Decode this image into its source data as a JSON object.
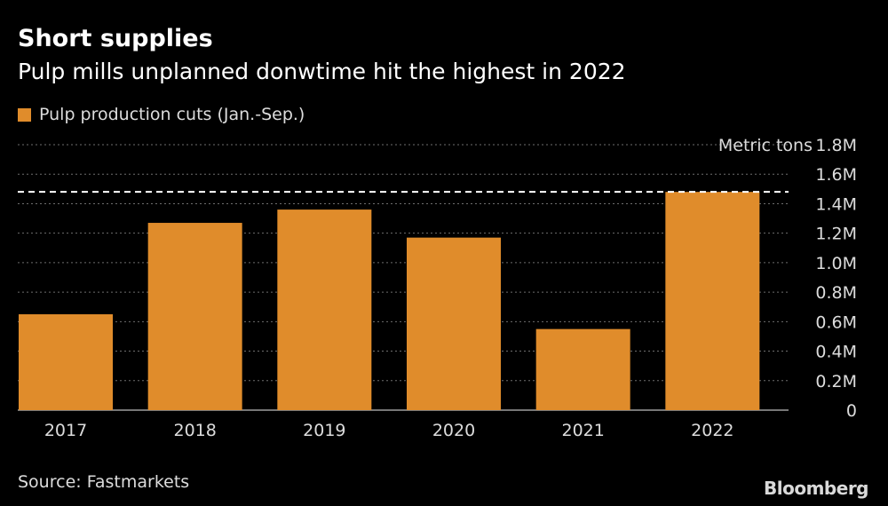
{
  "header": {
    "title": "Short supplies",
    "subtitle": "Pulp mills unplanned donwtime hit the highest in 2022"
  },
  "legend": {
    "label": "Pulp production cuts (Jan.-Sep.)"
  },
  "footer": {
    "source": "Source: Fastmarkets",
    "brand": "Bloomberg"
  },
  "colors": {
    "background": "#000000",
    "bar": "#E08C2B",
    "grid": "#6e6e6e",
    "reference_line": "#ffffff",
    "text": "#ffffff",
    "muted_text": "#dcdcdc"
  },
  "chart_data": {
    "type": "bar",
    "title": "Short supplies",
    "subtitle": "Pulp mills unplanned donwtime hit the highest in 2022",
    "categories": [
      "2017",
      "2018",
      "2019",
      "2020",
      "2021",
      "2022"
    ],
    "series": [
      {
        "name": "Pulp production cuts (Jan.-Sep.)",
        "values": [
          650000,
          1270000,
          1360000,
          1170000,
          550000,
          1480000
        ]
      }
    ],
    "ylabel": "Metric tons",
    "ylim": [
      0,
      1800000
    ],
    "yticks": [
      0,
      200000,
      400000,
      600000,
      800000,
      1000000,
      1200000,
      1400000,
      1600000,
      1800000
    ],
    "ytick_labels": [
      "0",
      "0.2M",
      "0.4M",
      "0.6M",
      "0.8M",
      "1.0M",
      "1.2M",
      "1.4M",
      "1.6M",
      "1.8M"
    ],
    "reference_line": {
      "value": 1480000,
      "style": "dashed"
    },
    "grid": true,
    "y_axis_position": "right",
    "legend_position": "top-left"
  }
}
